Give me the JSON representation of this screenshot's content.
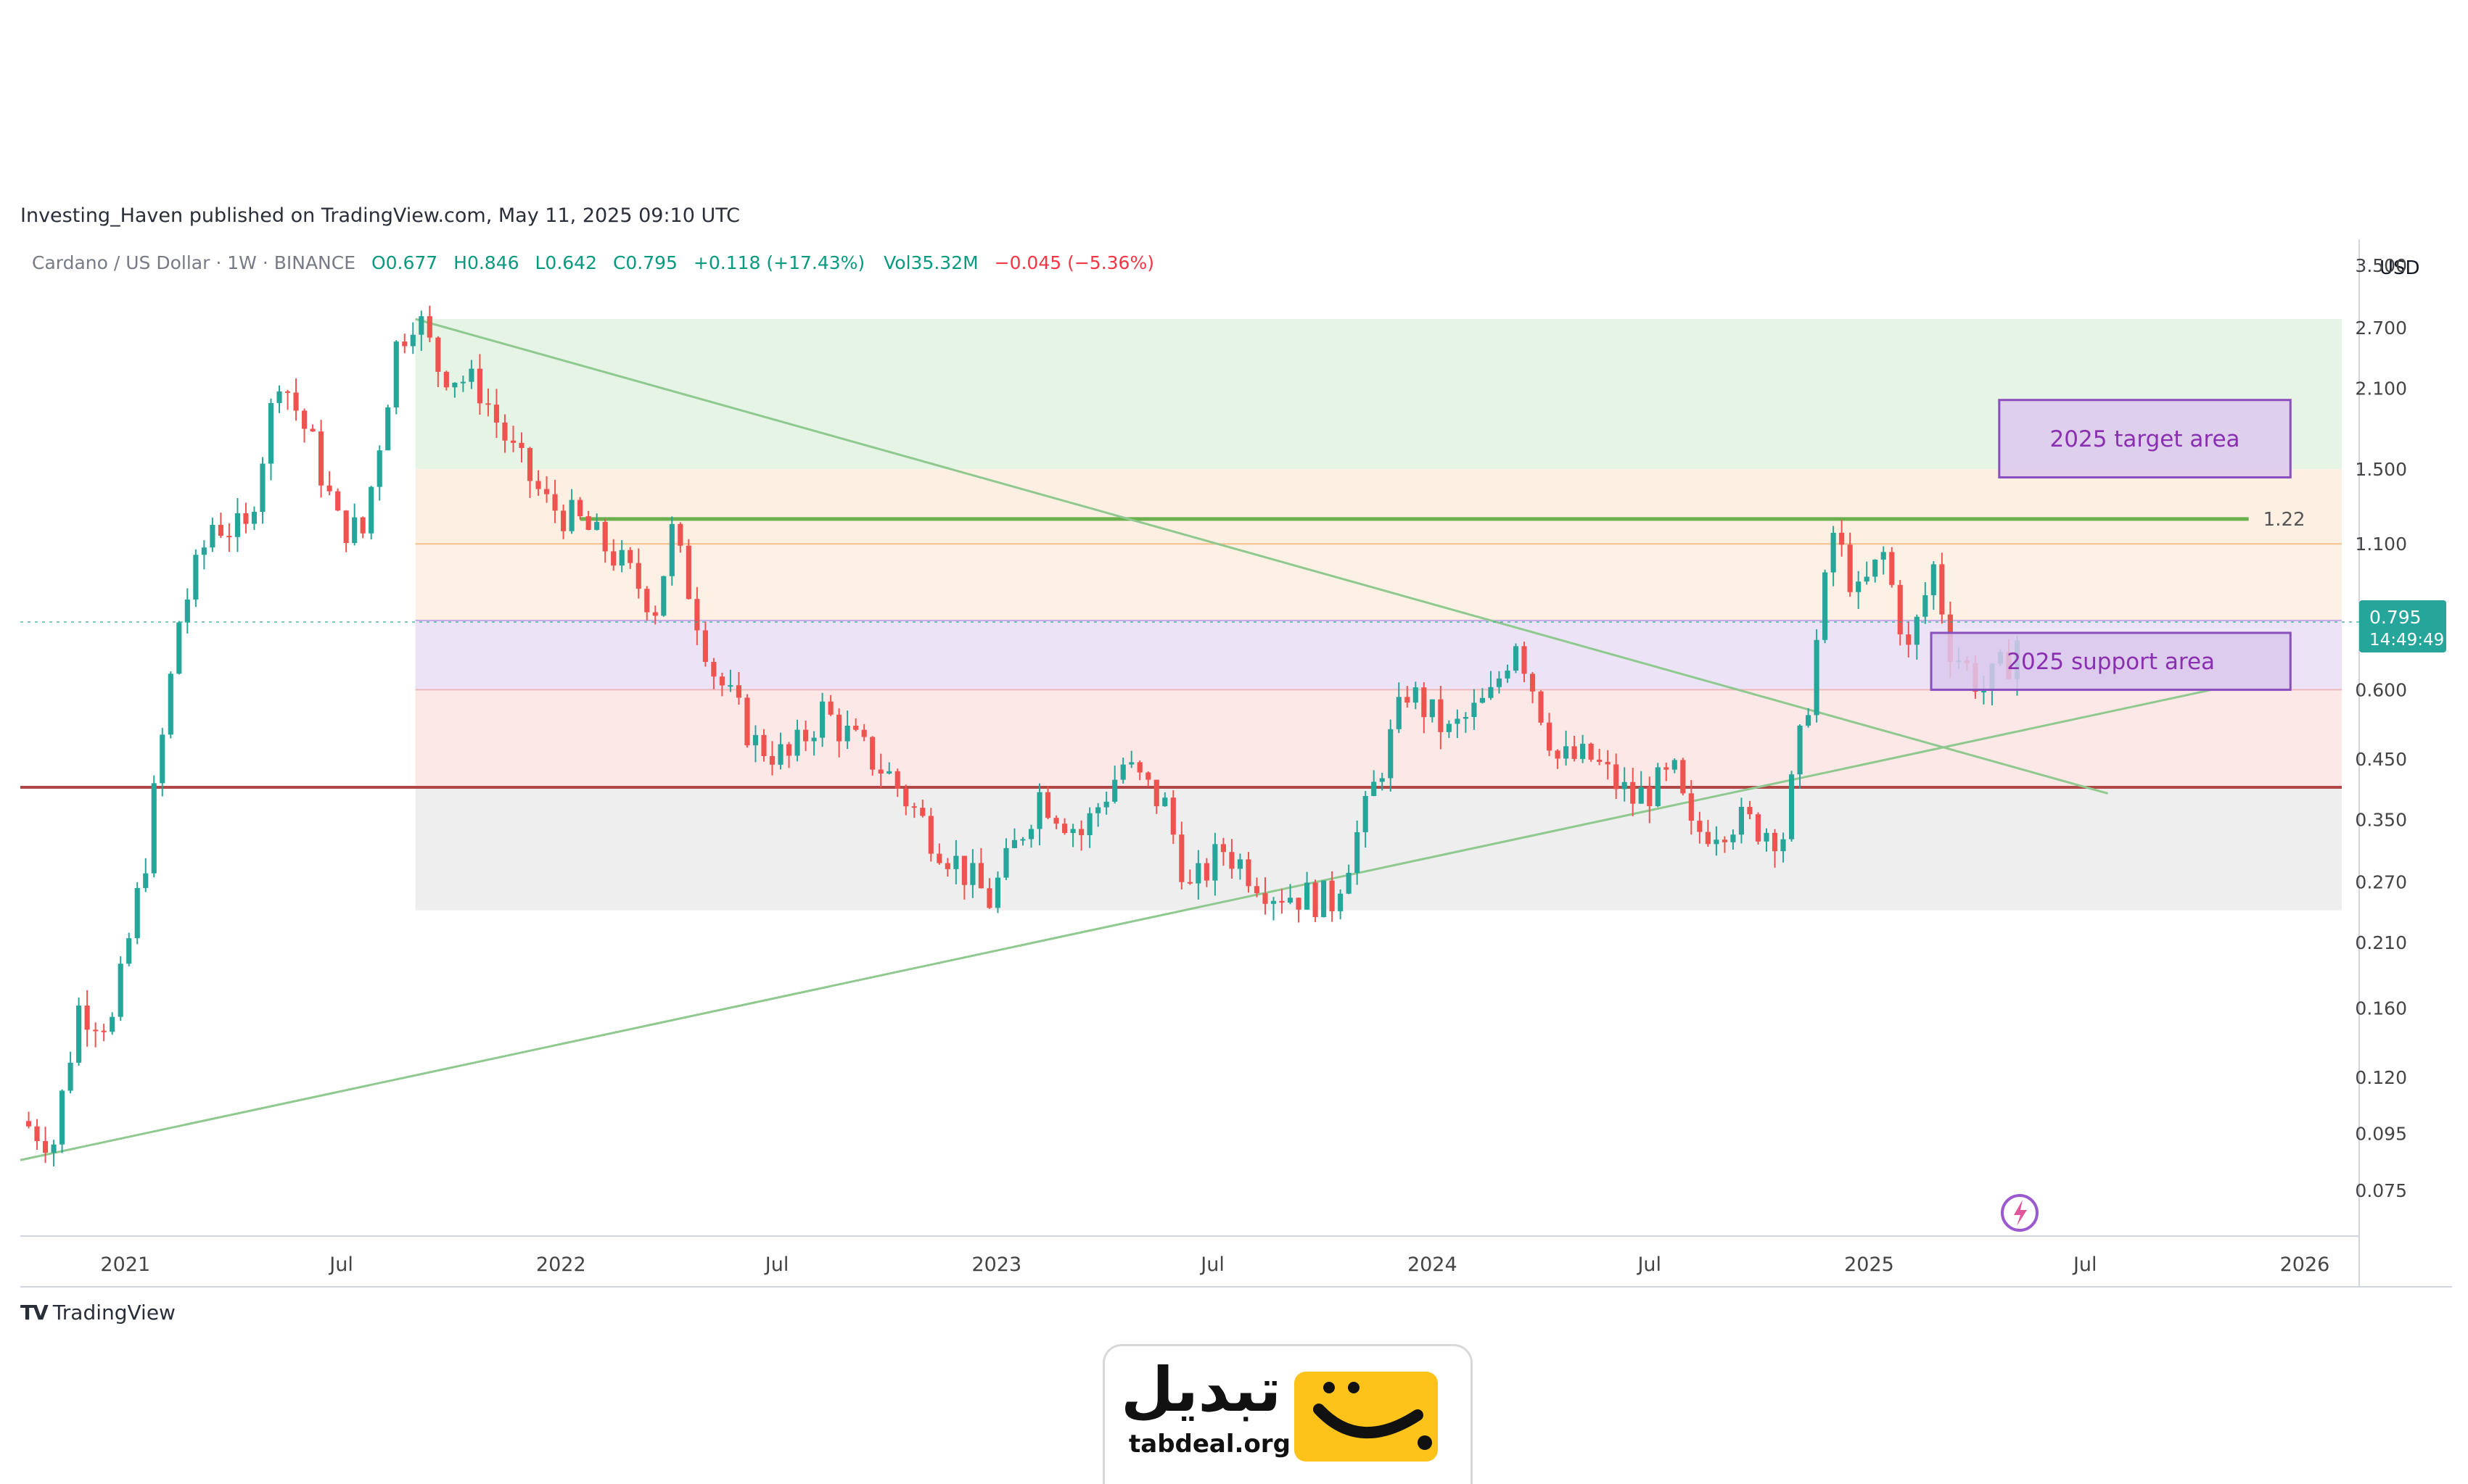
{
  "header": {
    "published": "Investing_Haven published on TradingView.com, May 11, 2025 09:10 UTC"
  },
  "symbol": {
    "name": "Cardano / US Dollar · 1W · BINANCE",
    "open": "O0.677",
    "high": "H0.846",
    "low": "L0.642",
    "close": "C0.795",
    "change": "+0.118 (+17.43%)",
    "volume": "Vol35.32M",
    "volume_change": "−0.045 (−5.36%)"
  },
  "chart_data": {
    "type": "candlestick",
    "currency_label": "USD",
    "y_scale": "log",
    "ylim": [
      0.062,
      3.9
    ],
    "y_ticks": [
      3.5,
      2.7,
      2.1,
      1.5,
      1.1,
      0.6,
      0.45,
      0.35,
      0.27,
      0.21,
      0.16,
      0.12,
      0.095,
      0.075
    ],
    "y_tick_labels": [
      "3.500",
      "2.700",
      "2.100",
      "1.500",
      "1.100",
      "0.600",
      "0.450",
      "0.350",
      "0.270",
      "0.210",
      "0.160",
      "0.120",
      "0.095",
      "0.075"
    ],
    "x_ticks": [
      {
        "label": "2021",
        "date": "2021-01-01"
      },
      {
        "label": "Jul",
        "date": "2021-07-01"
      },
      {
        "label": "2022",
        "date": "2022-01-01"
      },
      {
        "label": "Jul",
        "date": "2022-07-01"
      },
      {
        "label": "2023",
        "date": "2023-01-01"
      },
      {
        "label": "Jul",
        "date": "2023-07-01"
      },
      {
        "label": "2024",
        "date": "2024-01-01"
      },
      {
        "label": "Jul",
        "date": "2024-07-01"
      },
      {
        "label": "2025",
        "date": "2025-01-01"
      },
      {
        "label": "Jul",
        "date": "2025-07-01"
      },
      {
        "label": "2026",
        "date": "2026-01-01"
      }
    ],
    "xlim": [
      "2020-10-05",
      "2026-02-01"
    ],
    "price_path": [
      [
        "2020-10-05",
        0.1
      ],
      [
        "2020-11-02",
        0.092
      ],
      [
        "2020-11-23",
        0.16
      ],
      [
        "2020-12-21",
        0.15
      ],
      [
        "2021-01-18",
        0.3
      ],
      [
        "2021-02-15",
        0.8
      ],
      [
        "2021-03-15",
        1.2
      ],
      [
        "2021-04-12",
        1.15
      ],
      [
        "2021-05-10",
        2.25
      ],
      [
        "2021-06-07",
        1.65
      ],
      [
        "2021-06-28",
        1.2
      ],
      [
        "2021-07-19",
        1.15
      ],
      [
        "2021-08-16",
        2.5
      ],
      [
        "2021-09-01",
        2.9
      ],
      [
        "2021-09-20",
        2.3
      ],
      [
        "2021-10-25",
        2.1
      ],
      [
        "2021-11-22",
        1.6
      ],
      [
        "2021-12-20",
        1.3
      ],
      [
        "2022-01-17",
        1.2
      ],
      [
        "2022-02-14",
        1.05
      ],
      [
        "2022-03-21",
        0.85
      ],
      [
        "2022-04-04",
        1.15
      ],
      [
        "2022-05-09",
        0.65
      ],
      [
        "2022-06-13",
        0.48
      ],
      [
        "2022-07-11",
        0.45
      ],
      [
        "2022-08-08",
        0.55
      ],
      [
        "2022-09-05",
        0.48
      ],
      [
        "2022-10-03",
        0.42
      ],
      [
        "2022-11-07",
        0.33
      ],
      [
        "2022-12-26",
        0.25
      ],
      [
        "2023-02-06",
        0.39
      ],
      [
        "2023-03-13",
        0.33
      ],
      [
        "2023-04-17",
        0.44
      ],
      [
        "2023-05-22",
        0.37
      ],
      [
        "2023-06-12",
        0.26
      ],
      [
        "2023-07-10",
        0.31
      ],
      [
        "2023-08-21",
        0.26
      ],
      [
        "2023-10-09",
        0.25
      ],
      [
        "2023-11-06",
        0.36
      ],
      [
        "2023-12-11",
        0.6
      ],
      [
        "2024-01-15",
        0.5
      ],
      [
        "2024-02-19",
        0.58
      ],
      [
        "2024-03-11",
        0.75
      ],
      [
        "2024-04-15",
        0.45
      ],
      [
        "2024-05-13",
        0.45
      ],
      [
        "2024-06-17",
        0.38
      ],
      [
        "2024-07-22",
        0.42
      ],
      [
        "2024-08-05",
        0.33
      ],
      [
        "2024-09-09",
        0.35
      ],
      [
        "2024-10-21",
        0.33
      ],
      [
        "2024-11-11",
        0.58
      ],
      [
        "2024-12-02",
        1.15
      ],
      [
        "2024-12-23",
        0.88
      ],
      [
        "2025-01-13",
        1.05
      ],
      [
        "2025-02-03",
        0.7
      ],
      [
        "2025-02-24",
        1.0
      ],
      [
        "2025-03-10",
        0.72
      ],
      [
        "2025-04-07",
        0.6
      ],
      [
        "2025-04-28",
        0.68
      ],
      [
        "2025-05-11",
        0.795
      ]
    ],
    "last_price": {
      "label": "0.795",
      "countdown": "14:49:49",
      "value": 0.795
    },
    "zones": [
      {
        "from": 1.5,
        "to": 2.8,
        "color": "#e6f4e6"
      },
      {
        "from": 1.1,
        "to": 1.5,
        "color": "#fdf0e2"
      },
      {
        "from": 0.8,
        "to": 1.1,
        "color": "#fdf1e6"
      },
      {
        "from": 0.6,
        "to": 0.8,
        "color": "#ece4f6"
      },
      {
        "from": 0.4,
        "to": 0.6,
        "color": "#fde8e8"
      },
      {
        "from": 0.24,
        "to": 0.4,
        "color": "#eeeeee"
      }
    ],
    "zone_start": "2021-09-01",
    "horizontal_levels": [
      {
        "value": 1.22,
        "label": "1.22",
        "color": "#6ab04c"
      },
      {
        "value": 1.1,
        "label": "",
        "color": "#f5c08a"
      },
      {
        "value": 0.8,
        "label": "",
        "color": "#c6a8e6"
      },
      {
        "value": 0.6,
        "label": "",
        "color": "#f0b7b7"
      },
      {
        "value": 0.4,
        "label": "",
        "color": "#b04848"
      }
    ],
    "trendlines": [
      {
        "from": [
          "2021-09-01",
          2.8
        ],
        "to": [
          "2025-07-20",
          0.39
        ],
        "color": "#8fc98f"
      },
      {
        "from": [
          "2020-10-05",
          0.085
        ],
        "to": [
          "2025-10-15",
          0.6
        ],
        "color": "#8fc98f"
      }
    ],
    "annotations": [
      {
        "text": "2025 target area",
        "from_date": "2025-04-20",
        "to_date": "2025-12-20",
        "top": 2.0,
        "bottom": 1.45
      },
      {
        "text": "2025 support area",
        "from_date": "2025-02-22",
        "to_date": "2025-12-20",
        "top": 0.76,
        "bottom": 0.6
      }
    ]
  },
  "branding": {
    "tradingview": "TradingView",
    "tradingview_logo": "TV",
    "site_name": "تبدیل",
    "site_domain": "tabdeal.org",
    "accent_color": "#fdc31b"
  },
  "colors": {
    "up": "#26a69a",
    "down": "#ef5350",
    "annotation_fill": "#dcc8ec",
    "annotation_stroke": "#8a4fbf",
    "annotation_text": "#8a2fb0",
    "last_price_bg": "#26a69a"
  }
}
